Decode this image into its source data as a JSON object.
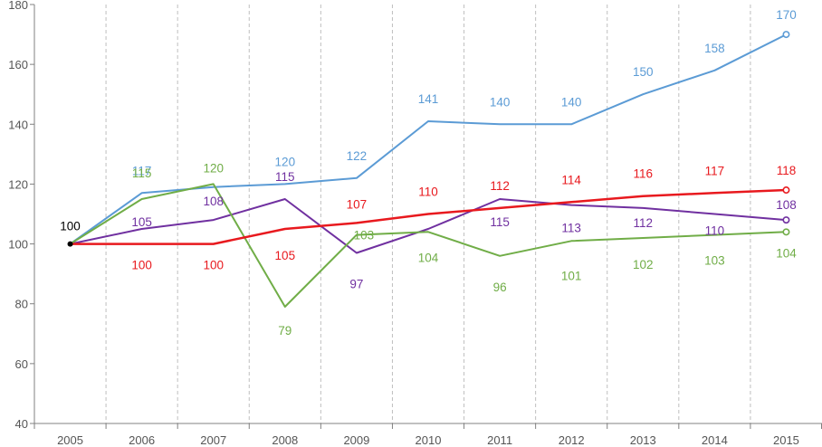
{
  "chart_data": {
    "type": "line",
    "title": "",
    "xlabel": "",
    "ylabel": "",
    "x": [
      "2005",
      "2006",
      "2007",
      "2008",
      "2009",
      "2010",
      "2011",
      "2012",
      "2013",
      "2014",
      "2015"
    ],
    "ylim": [
      40,
      180
    ],
    "yticks": [
      40,
      60,
      80,
      100,
      120,
      140,
      160,
      180
    ],
    "grid": "vertical dashed",
    "series": [
      {
        "name": "blue",
        "color": "#5b9bd5",
        "values": [
          100,
          117,
          119,
          120,
          122,
          141,
          140,
          140,
          150,
          158,
          170
        ],
        "labels": [
          "",
          "117",
          "",
          "120",
          "122",
          "141",
          "140",
          "140",
          "150",
          "158",
          "170"
        ]
      },
      {
        "name": "red",
        "color": "#e8191e",
        "values": [
          100,
          100,
          100,
          105,
          107,
          110,
          112,
          114,
          116,
          117,
          118
        ],
        "labels": [
          "",
          "100",
          "100",
          "105",
          "107",
          "110",
          "112",
          "114",
          "116",
          "117",
          "118"
        ]
      },
      {
        "name": "purple",
        "color": "#7030a0",
        "values": [
          100,
          105,
          108,
          115,
          97,
          105,
          115,
          113,
          112,
          110,
          108
        ],
        "labels": [
          "",
          "105",
          "108",
          "115",
          "97",
          "",
          "115",
          "113",
          "112",
          "110",
          "108"
        ]
      },
      {
        "name": "green",
        "color": "#70ad47",
        "values": [
          100,
          115,
          120,
          79,
          103,
          104,
          96,
          101,
          102,
          103,
          104
        ],
        "labels": [
          "",
          "115",
          "120",
          "79",
          "103",
          "104",
          "96",
          "101",
          "102",
          "103",
          "104"
        ]
      }
    ],
    "base_label": {
      "text": "100",
      "color": "#000000"
    }
  }
}
